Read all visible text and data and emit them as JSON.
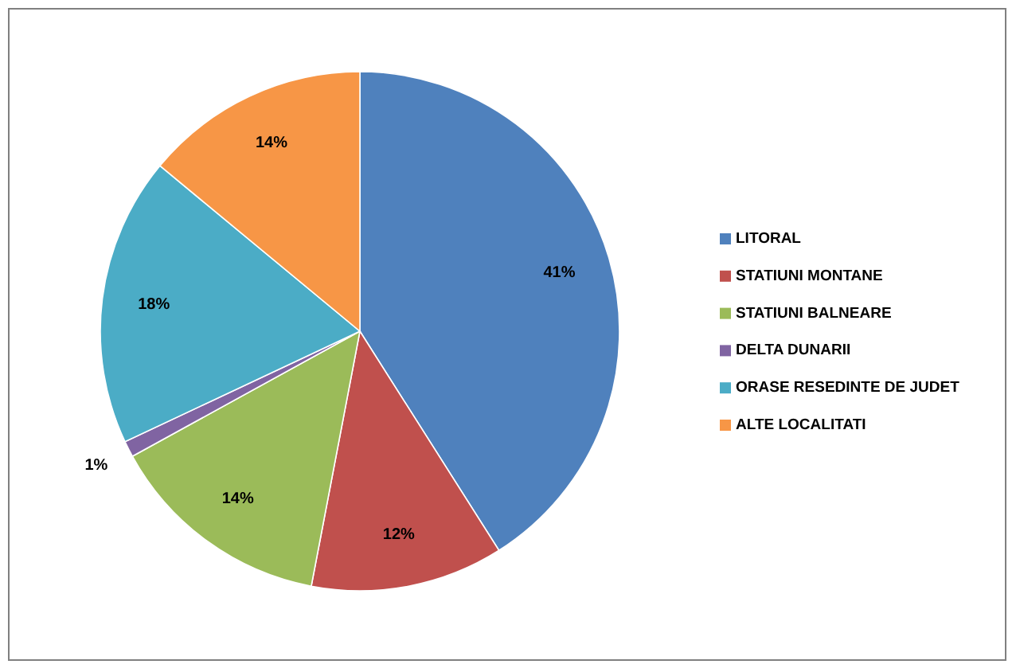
{
  "chart_data": {
    "type": "pie",
    "categories": [
      "LITORAL",
      "STATIUNI MONTANE",
      "STATIUNI BALNEARE",
      "DELTA DUNARII",
      "ORASE RESEDINTE  DE JUDET",
      "ALTE LOCALITATI"
    ],
    "values": [
      41,
      12,
      14,
      1,
      18,
      14
    ],
    "colors": [
      "#4f81bd",
      "#c0504d",
      "#9bbb59",
      "#8064a2",
      "#4bacc6",
      "#f79646"
    ],
    "value_labels": [
      "41%",
      "12%",
      "14%",
      "1%",
      "18%",
      "14%"
    ],
    "legend": "right"
  }
}
